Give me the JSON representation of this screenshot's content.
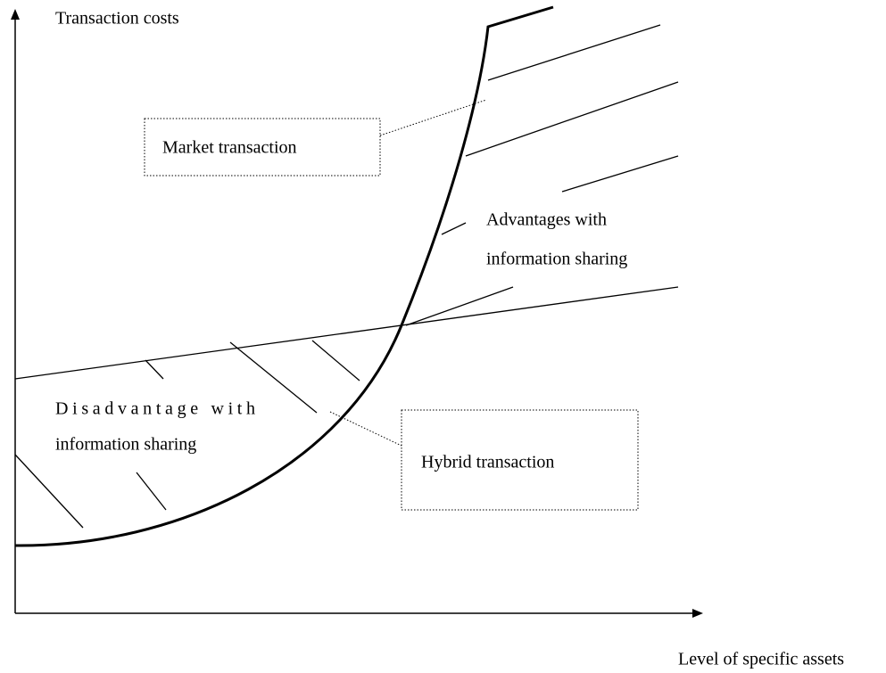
{
  "y_axis_label": "Transaction costs",
  "x_axis_label": "Level of specific assets",
  "labels": {
    "market": "Market transaction",
    "advantages": [
      "Advantages with",
      "information sharing"
    ],
    "disadvantage": [
      "Disadvantage with",
      "information sharing"
    ],
    "hybrid": "Hybrid transaction"
  }
}
